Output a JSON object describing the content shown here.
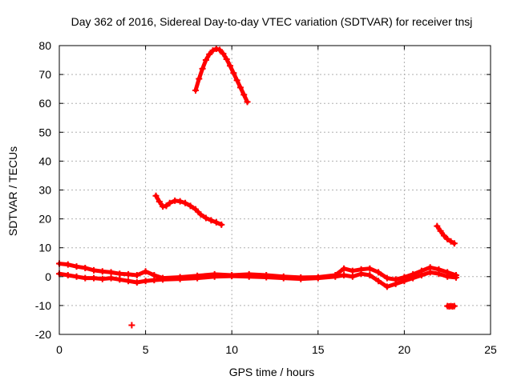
{
  "chart_data": {
    "type": "scatter",
    "title": "Day 362 of 2016, Sidereal Day-to-day VTEC variation (SDTVAR) for receiver tnsj",
    "xlabel": "GPS time / hours",
    "ylabel": "SDTVAR / TECUs",
    "xlim": [
      0,
      25
    ],
    "ylim": [
      -20,
      80
    ],
    "x_ticks": [
      0,
      5,
      10,
      15,
      20,
      25
    ],
    "y_ticks": [
      -20,
      -10,
      0,
      10,
      20,
      30,
      40,
      50,
      60,
      70,
      80
    ],
    "grid": true,
    "marker": "+",
    "color": "#ff0000",
    "series": [
      {
        "name": "baseline-upper",
        "x": [
          0.0,
          0.5,
          1.0,
          1.5,
          2.0,
          2.5,
          3.0,
          3.5,
          4.0,
          4.5,
          5.0,
          5.5,
          6.0,
          7.0,
          8.0,
          9.0,
          10.0,
          11.0,
          12.0,
          13.0,
          14.0,
          15.0,
          16.0,
          16.5,
          17.0,
          17.5,
          18.0,
          18.5,
          19.0,
          19.5,
          20.0,
          20.5,
          21.0,
          21.5,
          22.0,
          22.5,
          23.0
        ],
        "y": [
          4.5,
          4.2,
          3.5,
          3.0,
          2.2,
          1.8,
          1.5,
          1.0,
          0.8,
          0.5,
          1.8,
          0.5,
          -0.5,
          -0.2,
          0.3,
          0.8,
          0.5,
          0.8,
          0.5,
          0.0,
          -0.3,
          -0.2,
          0.5,
          2.8,
          2.0,
          2.5,
          2.8,
          1.5,
          -0.5,
          -1.0,
          -0.2,
          0.8,
          2.0,
          3.2,
          2.5,
          1.5,
          0.5
        ]
      },
      {
        "name": "baseline-lower",
        "x": [
          0.0,
          0.5,
          1.0,
          1.5,
          2.0,
          2.5,
          3.0,
          3.5,
          4.0,
          4.5,
          5.0,
          5.5,
          6.0,
          7.0,
          8.0,
          9.0,
          10.0,
          11.0,
          12.0,
          13.0,
          14.0,
          15.0,
          16.0,
          16.5,
          17.0,
          17.5,
          18.0,
          18.5,
          19.0,
          19.5,
          20.0,
          20.5,
          21.0,
          21.5,
          22.0,
          22.5,
          23.0
        ],
        "y": [
          1.0,
          0.5,
          0.0,
          -0.5,
          -0.5,
          -0.8,
          -0.5,
          -1.0,
          -1.5,
          -2.0,
          -1.5,
          -1.2,
          -1.0,
          -0.8,
          -0.5,
          0.0,
          0.2,
          0.0,
          -0.2,
          -0.5,
          -0.8,
          -0.5,
          0.0,
          0.5,
          0.0,
          1.0,
          0.5,
          -1.5,
          -3.5,
          -2.5,
          -1.5,
          -0.5,
          0.5,
          1.5,
          1.0,
          0.0,
          -0.3
        ]
      },
      {
        "name": "arc-peak",
        "x": [
          7.9,
          8.1,
          8.3,
          8.5,
          8.7,
          8.9,
          9.1,
          9.3,
          9.5,
          9.7,
          9.9,
          10.1,
          10.3,
          10.5,
          10.7,
          10.9
        ],
        "y": [
          64.5,
          68.5,
          72.0,
          75.0,
          77.0,
          78.3,
          78.9,
          78.5,
          77.2,
          75.3,
          73.0,
          70.5,
          68.0,
          65.5,
          63.0,
          60.5
        ]
      },
      {
        "name": "arc-mid",
        "x": [
          5.6,
          5.8,
          6.0,
          6.2,
          6.4,
          6.7,
          7.0,
          7.3,
          7.6,
          7.9,
          8.2,
          8.5,
          8.8,
          9.1,
          9.4
        ],
        "y": [
          28.0,
          26.0,
          24.3,
          24.5,
          25.5,
          26.3,
          26.1,
          25.5,
          24.5,
          23.3,
          21.5,
          20.3,
          19.5,
          18.8,
          18.0
        ]
      },
      {
        "name": "arc-late",
        "x": [
          21.9,
          22.1,
          22.3,
          22.5,
          22.7,
          22.9
        ],
        "y": [
          17.5,
          15.8,
          14.2,
          13.0,
          12.2,
          11.5
        ]
      },
      {
        "name": "outliers-low",
        "x": [
          4.2,
          22.5,
          22.6,
          22.7,
          22.8,
          22.9
        ],
        "y": [
          -16.8,
          -10.2,
          -10.3,
          -10.2,
          -10.3,
          -10.2
        ]
      }
    ]
  }
}
